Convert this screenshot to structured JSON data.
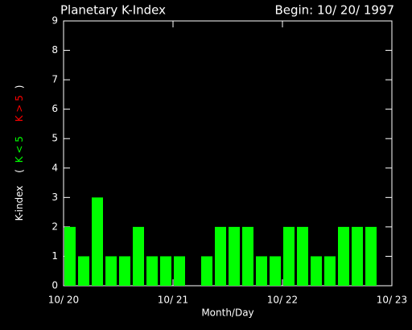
{
  "chart_data": {
    "type": "bar",
    "title": "Planetary K-Index",
    "subtitle": "Begin: 10/ 20/ 1997",
    "xlabel": "Month/Day",
    "ylabel": "K-index",
    "legend_open": "(",
    "legend_close": ")",
    "legend": [
      {
        "label": "K < 5",
        "color": "#00ff00"
      },
      {
        "label": "K > 5",
        "color": "#ff0000"
      }
    ],
    "x": [
      0,
      3,
      6,
      9,
      12,
      15,
      18,
      21,
      24,
      27,
      30,
      33,
      36,
      39,
      42,
      45,
      48,
      51,
      54,
      57,
      60,
      63,
      66,
      69
    ],
    "values": [
      2,
      1,
      3,
      1,
      1,
      2,
      1,
      1,
      1,
      0,
      1,
      2,
      2,
      2,
      1,
      1,
      2,
      2,
      1,
      1,
      2,
      2,
      2,
      0
    ],
    "bar_width": 3,
    "color": "#00ff00",
    "xlim": [
      0,
      72
    ],
    "xticks": [
      {
        "value": 0,
        "label": "10/ 20"
      },
      {
        "value": 24,
        "label": "10/ 21"
      },
      {
        "value": 48,
        "label": "10/ 22"
      },
      {
        "value": 72,
        "label": "10/ 23"
      }
    ],
    "ylim": [
      0,
      9
    ],
    "yticks": [
      0,
      1,
      2,
      3,
      4,
      5,
      6,
      7,
      8,
      9
    ]
  }
}
